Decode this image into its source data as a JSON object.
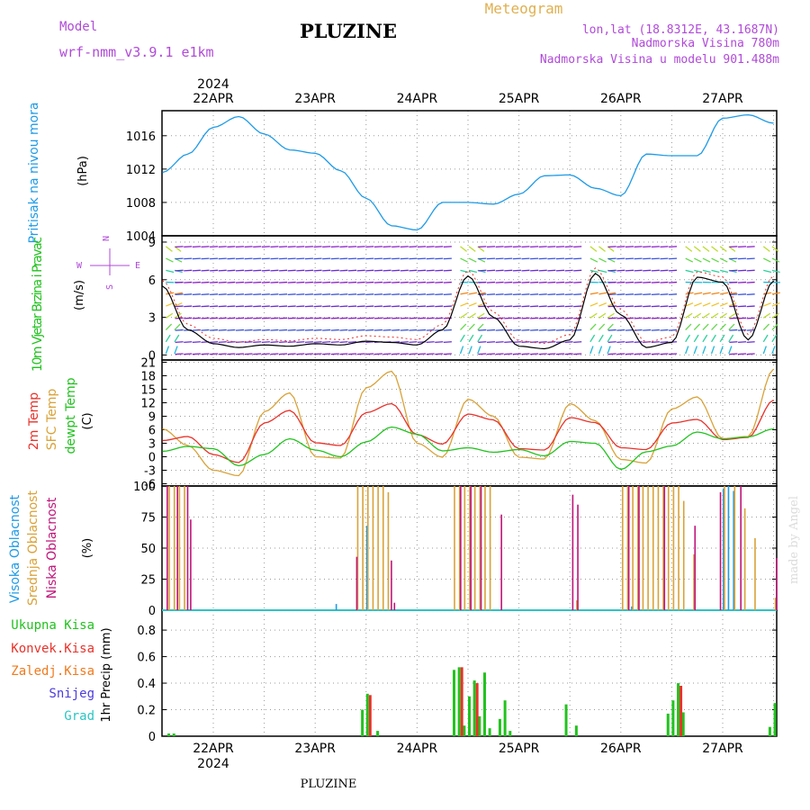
{
  "header": {
    "model_label": "Model",
    "model_name": "wrf-nmm_v3.9.1 e1km",
    "station": "PLUZINE",
    "title": "Meteogram",
    "lonlat": "lon,lat (18.8312E, 43.1687N)",
    "elevation": "Nadmorska Visina 780m",
    "model_elevation": "Nadmorska Visina u modelu 901.488m"
  },
  "footer": {
    "station": "PLUZINE",
    "credit": "made by Angel"
  },
  "colors": {
    "pressure": "#1e9be6",
    "temp2m": "#e8322a",
    "sfc": "#d9a238",
    "dewpt": "#22c21f",
    "high_cloud": "#1e9be6",
    "mid_cloud": "#d9a238",
    "low_cloud": "#c0147a",
    "total_precip": "#22c21f",
    "conv_precip": "#e8322a",
    "freezing": "#f07a1e",
    "snow": "#4b3ddc",
    "hail": "#2ec4c4",
    "wind_label": "#b04ad8"
  },
  "chart_data": [
    {
      "type": "line",
      "panel": "pressure",
      "title": "Pritisak na nivou mora",
      "ylabel": "(hPa)",
      "ylim": [
        1004,
        1019
      ],
      "yticks": [
        1004,
        1008,
        1012,
        1016
      ],
      "x_ticks": [
        "22APR",
        "23APR",
        "24APR",
        "25APR",
        "26APR",
        "27APR"
      ],
      "x_year": "2024",
      "x": [
        "21APR 12",
        "21APR 18",
        "22APR 00",
        "22APR 06",
        "22APR 12",
        "22APR 18",
        "23APR 00",
        "23APR 06",
        "23APR 12",
        "23APR 18",
        "24APR 00",
        "24APR 06",
        "24APR 12",
        "24APR 18",
        "25APR 00",
        "25APR 06",
        "25APR 12",
        "25APR 18",
        "26APR 00",
        "26APR 06",
        "26APR 12",
        "26APR 18",
        "27APR 00",
        "27APR 06",
        "27APR 12"
      ],
      "series": [
        {
          "name": "",
          "values": [
            1011.6,
            1013.8,
            1017.0,
            1018.3,
            1016.2,
            1014.3,
            1013.9,
            1011.8,
            1008.5,
            1005.2,
            1004.7,
            1008.0,
            1008.0,
            1007.8,
            1009.0,
            1011.2,
            1011.3,
            1009.7,
            1008.8,
            1013.8,
            1013.6,
            1013.6,
            1018.1,
            1018.5,
            1017.5
          ]
        }
      ]
    },
    {
      "type": "line",
      "panel": "wind",
      "title": "10m Vjetar Brzina i Pravac",
      "ylabel": "(m/s)",
      "compass": [
        "N",
        "S",
        "W",
        "E"
      ],
      "ylim": [
        -0.4,
        9.5
      ],
      "yticks": [
        0,
        3,
        6,
        9
      ],
      "series": [
        {
          "name": "speed",
          "values": [
            5.5,
            2.0,
            0.9,
            0.6,
            0.8,
            0.7,
            0.9,
            0.8,
            1.1,
            1.0,
            0.8,
            2.0,
            6.3,
            3.0,
            0.7,
            0.5,
            1.2,
            6.5,
            3.2,
            0.6,
            1.0,
            6.2,
            5.8,
            1.2,
            5.9
          ]
        }
      ]
    },
    {
      "type": "line",
      "panel": "temperature",
      "series_labels": [
        "2m Temp",
        "SFC Temp",
        "dewpt Temp"
      ],
      "ylabel": "(C)",
      "ylim": [
        -6.5,
        21.5
      ],
      "yticks": [
        -6,
        -3,
        0,
        3,
        6,
        9,
        12,
        15,
        18,
        21
      ],
      "series": [
        {
          "name": "2m Temp",
          "values": [
            3.6,
            4.5,
            0.5,
            -1.3,
            7.5,
            10.3,
            3.1,
            2.5,
            9.8,
            11.8,
            4.9,
            2.8,
            9.5,
            8.2,
            1.8,
            1.5,
            8.7,
            7.6,
            2.0,
            1.6,
            7.5,
            8.3,
            3.8,
            4.3,
            12.6
          ]
        },
        {
          "name": "SFC Temp",
          "values": [
            6.2,
            2.5,
            -3.0,
            -4.2,
            10.0,
            14.2,
            0.0,
            -0.3,
            15.3,
            19.0,
            3.0,
            -0.1,
            12.8,
            9.0,
            -0.1,
            -0.5,
            11.8,
            8.0,
            -0.6,
            -1.4,
            10.6,
            13.3,
            4.0,
            4.5,
            19.5
          ]
        },
        {
          "name": "dewpt Temp",
          "values": [
            1.2,
            2.3,
            1.8,
            -2.0,
            0.5,
            4.0,
            1.5,
            0.0,
            3.3,
            6.6,
            5.0,
            1.3,
            2.0,
            1.0,
            1.6,
            0.2,
            3.4,
            3.0,
            -2.8,
            1.1,
            2.4,
            5.5,
            4.0,
            4.4,
            6.2
          ]
        }
      ]
    },
    {
      "type": "bar",
      "panel": "clouds",
      "series_labels": [
        "Visoka Oblacnost",
        "Srednja Oblacnost",
        "Niska Oblacnost"
      ],
      "ylabel": "(%)",
      "ylim": [
        0,
        100
      ],
      "yticks": [
        0,
        25,
        50,
        75,
        100
      ],
      "series": [
        {
          "name": "Visoka Oblacnost",
          "x": [
            23.2,
            23.5,
            26.1,
            27.0,
            27.05,
            27.1
          ],
          "values": [
            5,
            68,
            3,
            98,
            100,
            96
          ]
        },
        {
          "name": "Srednja Oblacnost",
          "x": [
            21.55,
            21.6,
            21.65,
            21.7,
            23.4,
            23.45,
            23.5,
            23.55,
            23.6,
            23.65,
            23.7,
            24.35,
            24.4,
            24.45,
            24.5,
            24.55,
            24.6,
            24.65,
            24.7,
            25.55,
            26.0,
            26.05,
            26.1,
            26.15,
            26.2,
            26.25,
            26.3,
            26.35,
            26.4,
            26.45,
            26.5,
            26.55,
            26.6,
            26.7,
            27.0,
            27.1,
            27.2,
            27.3,
            27.5
          ],
          "values": [
            100,
            100,
            100,
            100,
            100,
            100,
            100,
            100,
            100,
            100,
            95,
            100,
            100,
            100,
            100,
            100,
            100,
            100,
            100,
            8,
            100,
            100,
            100,
            100,
            100,
            100,
            100,
            100,
            100,
            100,
            100,
            100,
            88,
            45,
            100,
            100,
            82,
            58,
            10
          ]
        },
        {
          "name": "Niska Oblacnost",
          "x": [
            21.52,
            21.62,
            21.72,
            21.75,
            23.38,
            23.72,
            23.75,
            24.4,
            24.5,
            24.6,
            24.8,
            25.5,
            25.55,
            26.05,
            26.15,
            26.4,
            26.7,
            26.95,
            27.15,
            27.5
          ],
          "values": [
            100,
            100,
            100,
            73,
            43,
            40,
            6,
            100,
            100,
            100,
            77,
            93,
            85,
            100,
            100,
            100,
            68,
            95,
            100,
            42
          ]
        }
      ]
    },
    {
      "type": "bar",
      "panel": "precip",
      "series_labels": [
        "Ukupna Kisa",
        "Konvek.Kisa",
        "Zaledj.Kisa",
        "Snijeg",
        "Grad"
      ],
      "ylabel": "1hr Precip (mm)",
      "ylim": [
        0,
        0.95
      ],
      "yticks": [
        0,
        0.2,
        0.4,
        0.6,
        0.8
      ],
      "series": [
        {
          "name": "Ukupna Kisa",
          "x": [
            21.55,
            21.6,
            23.45,
            23.5,
            23.6,
            24.35,
            24.4,
            24.45,
            24.5,
            24.55,
            24.6,
            24.65,
            24.7,
            24.8,
            24.85,
            24.9,
            25.45,
            25.55,
            26.45,
            26.5,
            26.55,
            26.6,
            27.45,
            27.5
          ],
          "values": [
            0.02,
            0.02,
            0.2,
            0.32,
            0.04,
            0.5,
            0.52,
            0.08,
            0.3,
            0.42,
            0.15,
            0.48,
            0.06,
            0.13,
            0.27,
            0.04,
            0.24,
            0.08,
            0.17,
            0.27,
            0.4,
            0.18,
            0.07,
            0.25
          ]
        },
        {
          "name": "Konvek.Kisa",
          "x": [
            23.5,
            24.4,
            24.55,
            26.55
          ],
          "values": [
            0.31,
            0.52,
            0.4,
            0.38
          ]
        },
        {
          "name": "Zaledj.Kisa",
          "x": [],
          "values": []
        },
        {
          "name": "Snijeg",
          "x": [],
          "values": []
        },
        {
          "name": "Grad",
          "x": [],
          "values": []
        }
      ]
    }
  ]
}
